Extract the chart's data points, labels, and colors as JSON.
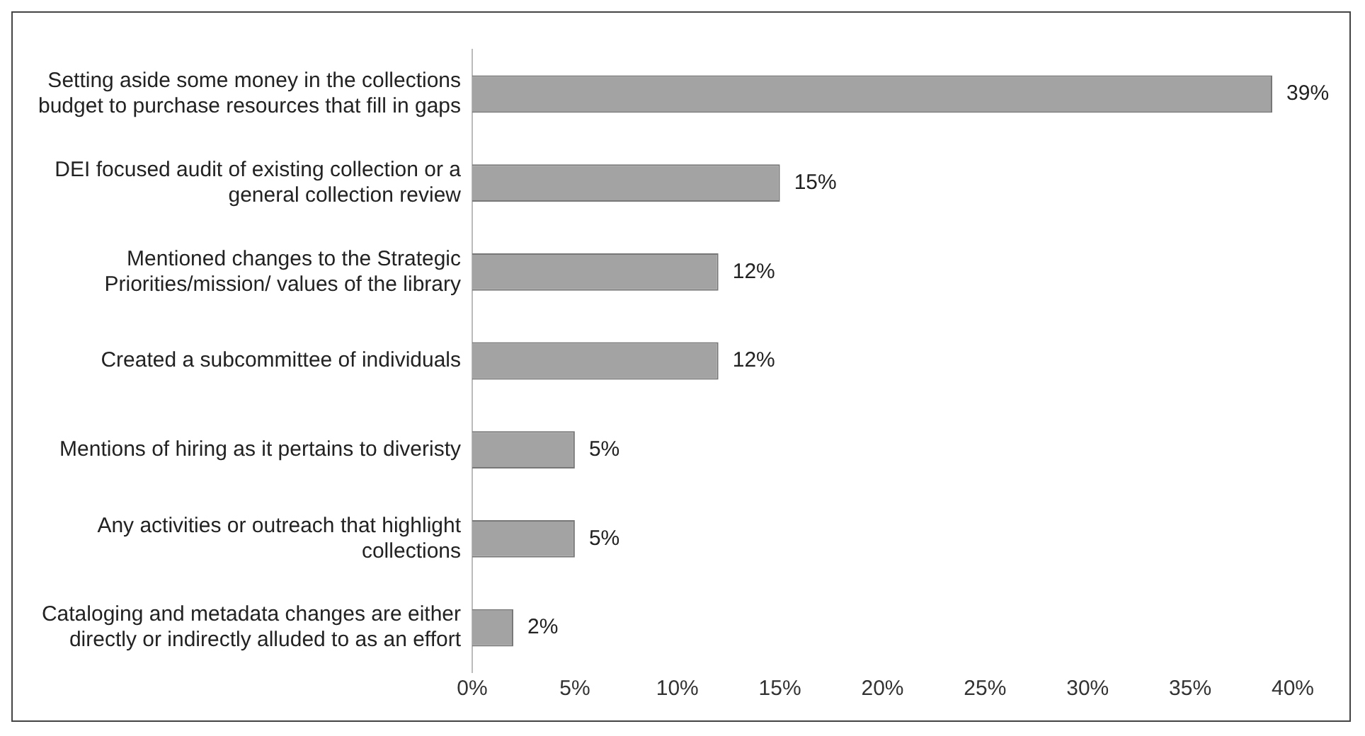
{
  "chart_data": {
    "type": "bar",
    "orientation": "horizontal",
    "categories": [
      "Setting aside some money in the collections budget to purchase resources that fill in gaps",
      "DEI focused audit of existing collection or a general collection review",
      "Mentioned changes to the Strategic Priorities/mission/ values of the library",
      "Created a subcommittee of individuals",
      "Mentions of hiring as it pertains to diveristy",
      "Any activities or outreach that highlight collections",
      "Cataloging and metadata changes are either directly or indirectly alluded to as an effort"
    ],
    "values": [
      39,
      15,
      12,
      12,
      5,
      5,
      2
    ],
    "value_labels": [
      "39%",
      "15%",
      "12%",
      "12%",
      "5%",
      "5%",
      "2%"
    ],
    "color": "#a3a3a3",
    "xlim": [
      0,
      40
    ],
    "xticks": [
      {
        "value": 0,
        "label": "0%"
      },
      {
        "value": 5,
        "label": "5%"
      },
      {
        "value": 10,
        "label": "10%"
      },
      {
        "value": 15,
        "label": "15%"
      },
      {
        "value": 20,
        "label": "20%"
      },
      {
        "value": 25,
        "label": "25%"
      },
      {
        "value": 30,
        "label": "30%"
      },
      {
        "value": 35,
        "label": "35%"
      },
      {
        "value": 40,
        "label": "40%"
      }
    ],
    "grid": false,
    "legend": false
  }
}
